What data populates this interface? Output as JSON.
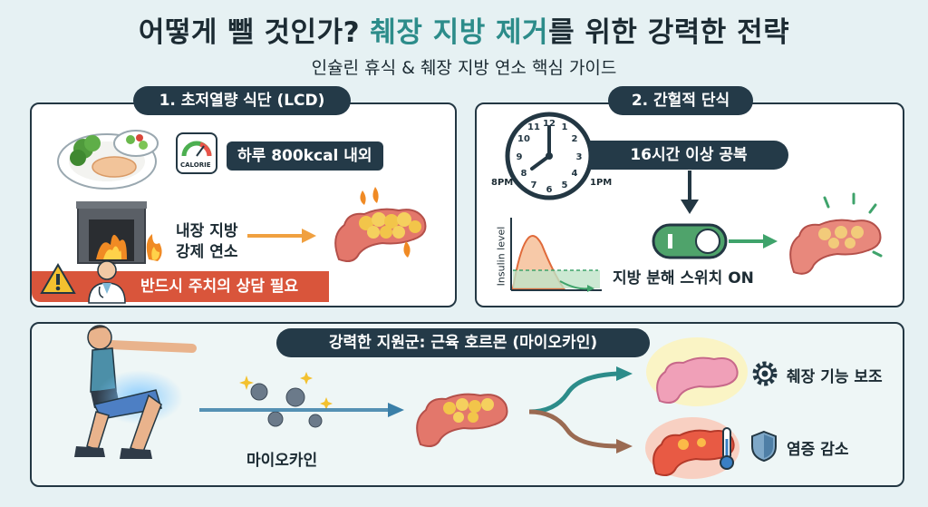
{
  "header": {
    "title_part1": "어떻게 뺄 것인가? ",
    "title_highlight": "췌장 지방 제거",
    "title_part2": "를 위한 강력한 전략",
    "subtitle": "인슐린 휴식 & 췌장 지방 연소 핵심 가이드"
  },
  "section1": {
    "heading": "1. 초저열량 식단 (LCD)",
    "calorie_gauge_label": "CALORIE",
    "calorie_text": "하루 800kcal 내외",
    "burn_line1": "내장 지방",
    "burn_line2": "강제 연소",
    "warning": "반드시 주치의 상담 필요"
  },
  "section2": {
    "heading": "2. 간헐적 단식",
    "fasting_text": "16시간 이상 공복",
    "time_start": "8PM",
    "time_end": "1PM",
    "axis_label": "Insulin level",
    "switch_text": "지방 분해 스위치 ON"
  },
  "section3": {
    "heading": "강력한 지원군: 근육 호르몬 (마이오카인)",
    "myokine_label": "마이오카인",
    "benefit1": "췌장 기능 보조",
    "benefit2": "염증 감소"
  },
  "colors": {
    "accent_teal": "#2c8c8a",
    "dark_navy": "#243a48",
    "warning_red": "#d9553b",
    "orange_arrow": "#f0a040",
    "green_arrow": "#3fa36b"
  }
}
